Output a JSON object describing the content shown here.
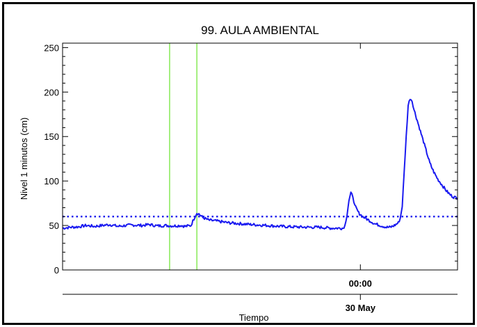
{
  "chart_data": {
    "type": "line",
    "title": "99. AULA AMBIENTAL",
    "xlabel": "Tiempo",
    "ylabel": "Nivel 1 minutos (cm)",
    "ylim": [
      0,
      255
    ],
    "yticks": [
      0,
      50,
      100,
      150,
      200,
      250
    ],
    "x_tick_labels": [
      {
        "label": "00:00",
        "x_fraction": 0.754
      }
    ],
    "date_labels": [
      {
        "label": "30 May",
        "x_fraction": 0.754
      }
    ],
    "grid": false,
    "threshold": {
      "value": 60,
      "style": "dotted",
      "color": "#2222ee"
    },
    "vertical_markers": {
      "x_fractions": [
        0.271,
        0.34
      ],
      "color": "#7ee84a"
    },
    "series": [
      {
        "color": "#1a1af0",
        "points": [
          [
            0.0,
            47
          ],
          [
            0.02,
            48
          ],
          [
            0.04,
            48.5
          ],
          [
            0.06,
            50
          ],
          [
            0.08,
            49
          ],
          [
            0.1,
            50
          ],
          [
            0.12,
            51
          ],
          [
            0.14,
            49
          ],
          [
            0.16,
            50
          ],
          [
            0.18,
            50.5
          ],
          [
            0.2,
            50
          ],
          [
            0.22,
            51
          ],
          [
            0.24,
            49.5
          ],
          [
            0.26,
            50
          ],
          [
            0.28,
            49.5
          ],
          [
            0.3,
            50
          ],
          [
            0.31,
            49
          ],
          [
            0.325,
            50
          ],
          [
            0.33,
            55
          ],
          [
            0.335,
            60
          ],
          [
            0.34,
            64
          ],
          [
            0.345,
            63
          ],
          [
            0.355,
            59
          ],
          [
            0.37,
            56
          ],
          [
            0.39,
            55
          ],
          [
            0.42,
            53
          ],
          [
            0.45,
            52
          ],
          [
            0.48,
            51
          ],
          [
            0.52,
            50
          ],
          [
            0.55,
            49
          ],
          [
            0.58,
            48.5
          ],
          [
            0.62,
            48
          ],
          [
            0.65,
            48
          ],
          [
            0.68,
            47
          ],
          [
            0.7,
            47
          ],
          [
            0.71,
            47
          ],
          [
            0.715,
            50
          ],
          [
            0.72,
            62
          ],
          [
            0.725,
            78
          ],
          [
            0.73,
            86
          ],
          [
            0.735,
            83
          ],
          [
            0.74,
            72
          ],
          [
            0.75,
            64
          ],
          [
            0.76,
            60
          ],
          [
            0.775,
            56
          ],
          [
            0.79,
            52
          ],
          [
            0.805,
            50
          ],
          [
            0.82,
            48
          ],
          [
            0.83,
            48
          ],
          [
            0.84,
            50
          ],
          [
            0.85,
            53
          ],
          [
            0.855,
            58
          ],
          [
            0.86,
            72
          ],
          [
            0.865,
            110
          ],
          [
            0.87,
            150
          ],
          [
            0.875,
            185
          ],
          [
            0.88,
            193
          ],
          [
            0.885,
            190
          ],
          [
            0.89,
            180
          ],
          [
            0.9,
            165
          ],
          [
            0.91,
            150
          ],
          [
            0.92,
            135
          ],
          [
            0.93,
            120
          ],
          [
            0.94,
            110
          ],
          [
            0.95,
            102
          ],
          [
            0.96,
            96
          ],
          [
            0.97,
            90
          ],
          [
            0.98,
            85
          ],
          [
            0.99,
            82
          ],
          [
            1.0,
            81
          ]
        ]
      }
    ]
  }
}
